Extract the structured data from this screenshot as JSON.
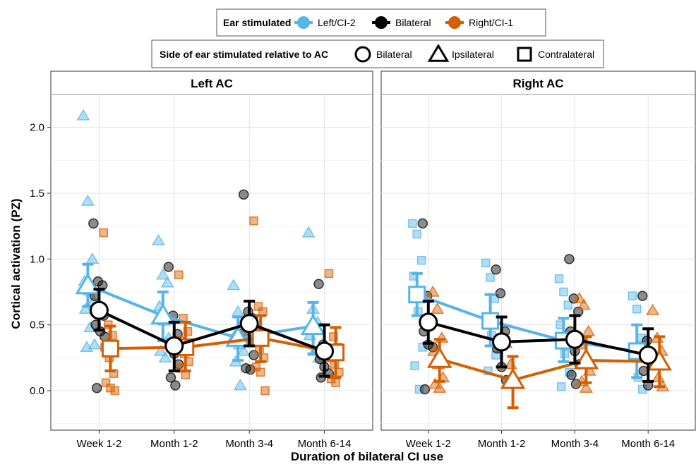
{
  "chart_data": {
    "type": "scatter",
    "ylabel": "Cortical activation (PZ)",
    "xlabel": "Duration of bilateral CI use",
    "ylim": [
      -0.3,
      2.25
    ],
    "yticks": [
      0.0,
      0.5,
      1.0,
      1.5,
      2.0
    ],
    "ytick_labels": [
      "0.0",
      "0.5",
      "1.0",
      "1.5",
      "2.0"
    ],
    "categories": [
      "Week 1-2",
      "Month 1-2",
      "Month 3-4",
      "Month 6-14"
    ],
    "grid": true,
    "legend_placement": "top-center",
    "legend": {
      "ear": {
        "title": "Ear stimulated",
        "items": [
          {
            "label": "Left/CI-2",
            "key": "left",
            "color": "#56B4E9"
          },
          {
            "label": "Bilateral",
            "key": "bilateral",
            "color": "#000000"
          },
          {
            "label": "Right/CI-1",
            "key": "right",
            "color": "#D55E00"
          }
        ]
      },
      "side": {
        "title": "Side of ear stimulated relative to AC",
        "items": [
          {
            "label": "Bilateral",
            "shape": "circle"
          },
          {
            "label": "Ipsilateral",
            "shape": "triangle"
          },
          {
            "label": "Contralateral",
            "shape": "square"
          }
        ]
      }
    },
    "panels": [
      {
        "title": "Left AC",
        "series": [
          {
            "ear": "left",
            "shape": "triangle",
            "mean": [
              0.8,
              0.57,
              0.4,
              0.49
            ],
            "ci_low": [
              0.64,
              0.38,
              0.23,
              0.28
            ],
            "ci_high": [
              0.96,
              0.75,
              0.56,
              0.67
            ]
          },
          {
            "ear": "bilateral",
            "shape": "circle",
            "mean": [
              0.61,
              0.34,
              0.51,
              0.3
            ],
            "ci_low": [
              0.46,
              0.15,
              0.34,
              0.11
            ],
            "ci_high": [
              0.77,
              0.52,
              0.68,
              0.5
            ]
          },
          {
            "ear": "right",
            "shape": "square",
            "mean": [
              0.32,
              0.33,
              0.4,
              0.29
            ],
            "ci_low": [
              0.15,
              0.15,
              0.22,
              0.1
            ],
            "ci_high": [
              0.49,
              0.52,
              0.57,
              0.48
            ]
          }
        ],
        "points": [
          {
            "ear": "left",
            "shape": "triangle",
            "values": [
              [
                2.09,
                1.44,
                1.0,
                0.83,
                0.76,
                0.68,
                0.62,
                0.48,
                0.35,
                0.33
              ],
              [
                1.14,
                0.88,
                0.82,
                0.64,
                0.53,
                0.4,
                0.3,
                0.25
              ],
              [
                0.8,
                0.6,
                0.52,
                0.42,
                0.35,
                0.3,
                0.22,
                0.04
              ],
              [
                1.2,
                0.62,
                0.52,
                0.42,
                0.3,
                0.25
              ]
            ]
          },
          {
            "ear": "bilateral",
            "shape": "circle",
            "values": [
              [
                1.27,
                0.83,
                0.8,
                0.72,
                0.62,
                0.57,
                0.5,
                0.45,
                0.41,
                0.02
              ],
              [
                0.94,
                0.57,
                0.43,
                0.36,
                0.28,
                0.2,
                0.1,
                0.04
              ],
              [
                1.49,
                0.6,
                0.55,
                0.45,
                0.37,
                0.27,
                0.17,
                0.16
              ],
              [
                0.81,
                0.35,
                0.28,
                0.24,
                0.18,
                0.13,
                0.1
              ]
            ]
          },
          {
            "ear": "right",
            "shape": "square",
            "values": [
              [
                1.2,
                0.5,
                0.42,
                0.33,
                0.25,
                0.13,
                0.06,
                0.02,
                0.0
              ],
              [
                0.88,
                0.55,
                0.45,
                0.38,
                0.28,
                0.22,
                0.17,
                0.12
              ],
              [
                1.29,
                0.64,
                0.6,
                0.47,
                0.32,
                0.25,
                0.18,
                0.14,
                0.0
              ],
              [
                0.89,
                0.41,
                0.33,
                0.25,
                0.2,
                0.14,
                0.09,
                0.06
              ]
            ]
          }
        ]
      },
      {
        "title": "Right AC",
        "series": [
          {
            "ear": "left",
            "shape": "square",
            "mean": [
              0.73,
              0.53,
              0.38,
              0.3
            ],
            "ci_low": [
              0.57,
              0.34,
              0.22,
              0.1
            ],
            "ci_high": [
              0.89,
              0.73,
              0.55,
              0.5
            ]
          },
          {
            "ear": "bilateral",
            "shape": "circle",
            "mean": [
              0.52,
              0.37,
              0.39,
              0.27
            ],
            "ci_low": [
              0.36,
              0.18,
              0.21,
              0.07
            ],
            "ci_high": [
              0.68,
              0.56,
              0.57,
              0.47
            ]
          },
          {
            "ear": "right",
            "shape": "triangle",
            "mean": [
              0.24,
              0.08,
              0.23,
              0.22
            ],
            "ci_low": [
              0.07,
              -0.13,
              0.06,
              0.03
            ],
            "ci_high": [
              0.39,
              0.26,
              0.41,
              0.41
            ]
          }
        ],
        "points": [
          {
            "ear": "left",
            "shape": "square",
            "values": [
              [
                1.27,
                1.19,
                0.99,
                0.87,
                0.6,
                0.33,
                0.19,
                0.01
              ],
              [
                0.97,
                0.86,
                0.7,
                0.5,
                0.42,
                0.27,
                0.15
              ],
              [
                0.85,
                0.75,
                0.65,
                0.5,
                0.28,
                0.14,
                0.03
              ],
              [
                0.72,
                0.62,
                0.4,
                0.25,
                0.1,
                0.01
              ]
            ]
          },
          {
            "ear": "bilateral",
            "shape": "circle",
            "values": [
              [
                1.27,
                0.72,
                0.52,
                0.45,
                0.35,
                0.33,
                0.01
              ],
              [
                0.92,
                0.74,
                0.45,
                0.32,
                0.18,
                0.08
              ],
              [
                1.0,
                0.7,
                0.6,
                0.45,
                0.3,
                0.2,
                0.12,
                0.05
              ],
              [
                0.72,
                0.38,
                0.26,
                0.15,
                0.04
              ]
            ]
          },
          {
            "ear": "right",
            "shape": "triangle",
            "values": [
              [
                0.75,
                0.62,
                0.4,
                0.3,
                0.2,
                0.1,
                0.05,
                0.02
              ],
              [
                0.36,
                0.2,
                0.05
              ],
              [
                0.7,
                0.65,
                0.45,
                0.35,
                0.25,
                0.15,
                0.07,
                0.02
              ],
              [
                0.61,
                0.4,
                0.3,
                0.2,
                0.1,
                0.03
              ]
            ]
          }
        ]
      }
    ]
  }
}
